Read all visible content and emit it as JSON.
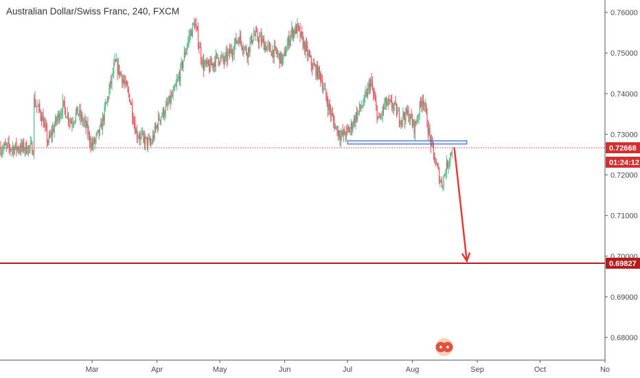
{
  "chart_title": "Australian Dollar/Swiss Franc, 240, FXCM",
  "colors": {
    "up": "#53b987",
    "down": "#eb4d5c",
    "line": "#555555",
    "price_line": "#d32f2f",
    "target_line": "#b71c1c",
    "arrow": "#e53935",
    "zone": "#3b6fd6"
  },
  "chart_data": {
    "type": "candlestick",
    "title": "Australian Dollar/Swiss Franc, 240, FXCM",
    "symbol": "AUDCHF",
    "interval": "240",
    "source": "FXCM",
    "x_tick_labels": [
      "Mar",
      "Apr",
      "May",
      "Jun",
      "Jul",
      "Aug",
      "Sep",
      "Oct",
      "No"
    ],
    "y_tick_labels": [
      "0.76000",
      "0.75000",
      "0.74000",
      "0.73000",
      "0.72000",
      "0.71000",
      "0.70000",
      "0.69000",
      "0.68000"
    ],
    "y_ticks": [
      0.76,
      0.75,
      0.74,
      0.73,
      0.72,
      0.71,
      0.7,
      0.69,
      0.68
    ],
    "ylim": [
      0.6745,
      0.7625
    ],
    "current_price": 0.72668,
    "current_price_label": "0.72668",
    "countdown_label": "01:24:12",
    "target_price": 0.69827,
    "target_price_label": "0.69827",
    "price_path": [
      [
        "2018-02-01",
        0.7385
      ],
      [
        "2018-02-05",
        0.7345
      ],
      [
        "2018-02-08",
        0.728
      ],
      [
        "2018-02-12",
        0.7335
      ],
      [
        "2018-02-15",
        0.737
      ],
      [
        "2018-02-19",
        0.733
      ],
      [
        "2018-02-22",
        0.7355
      ],
      [
        "2018-02-26",
        0.732
      ],
      [
        "2018-03-01",
        0.727
      ],
      [
        "2018-03-05",
        0.731
      ],
      [
        "2018-03-08",
        0.738
      ],
      [
        "2018-03-12",
        0.7475
      ],
      [
        "2018-03-15",
        0.7445
      ],
      [
        "2018-03-19",
        0.739
      ],
      [
        "2018-03-22",
        0.7305
      ],
      [
        "2018-03-26",
        0.7285
      ],
      [
        "2018-03-29",
        0.7275
      ],
      [
        "2018-04-02",
        0.734
      ],
      [
        "2018-04-05",
        0.736
      ],
      [
        "2018-04-09",
        0.74
      ],
      [
        "2018-04-12",
        0.745
      ],
      [
        "2018-04-16",
        0.7535
      ],
      [
        "2018-04-19",
        0.7575
      ],
      [
        "2018-04-23",
        0.747
      ],
      [
        "2018-04-26",
        0.7465
      ],
      [
        "2018-04-30",
        0.749
      ],
      [
        "2018-05-03",
        0.748
      ],
      [
        "2018-05-07",
        0.751
      ],
      [
        "2018-05-10",
        0.754
      ],
      [
        "2018-05-14",
        0.75
      ],
      [
        "2018-05-17",
        0.7545
      ],
      [
        "2018-05-21",
        0.753
      ],
      [
        "2018-05-24",
        0.751
      ],
      [
        "2018-05-28",
        0.75
      ],
      [
        "2018-05-31",
        0.748
      ],
      [
        "2018-06-04",
        0.755
      ],
      [
        "2018-06-07",
        0.756
      ],
      [
        "2018-06-11",
        0.751
      ],
      [
        "2018-06-14",
        0.747
      ],
      [
        "2018-06-18",
        0.7445
      ],
      [
        "2018-06-21",
        0.7385
      ],
      [
        "2018-06-25",
        0.732
      ],
      [
        "2018-06-28",
        0.7295
      ],
      [
        "2018-07-02",
        0.731
      ],
      [
        "2018-07-05",
        0.7345
      ],
      [
        "2018-07-09",
        0.738
      ],
      [
        "2018-07-12",
        0.743
      ],
      [
        "2018-07-16",
        0.733
      ],
      [
        "2018-07-19",
        0.7375
      ],
      [
        "2018-07-23",
        0.737
      ],
      [
        "2018-07-26",
        0.734
      ],
      [
        "2018-07-30",
        0.735
      ],
      [
        "2018-08-02",
        0.7315
      ],
      [
        "2018-08-06",
        0.7395
      ],
      [
        "2018-08-09",
        0.73
      ],
      [
        "2018-08-12",
        0.723
      ],
      [
        "2018-08-15",
        0.7175
      ],
      [
        "2018-08-17",
        0.7215
      ],
      [
        "2018-08-20",
        0.72668
      ]
    ],
    "annotations": [
      {
        "type": "rectangle",
        "label": "",
        "date_from": "2018-07-01",
        "date_to": "2018-08-27",
        "price_from": 0.7276,
        "price_to": 0.7284
      },
      {
        "type": "arrow",
        "label": "",
        "from": [
          "2018-08-21",
          0.7268
        ],
        "to": [
          "2018-08-27",
          0.6988
        ]
      },
      {
        "type": "horizontal_line",
        "label": "",
        "price": 0.69827
      }
    ]
  }
}
